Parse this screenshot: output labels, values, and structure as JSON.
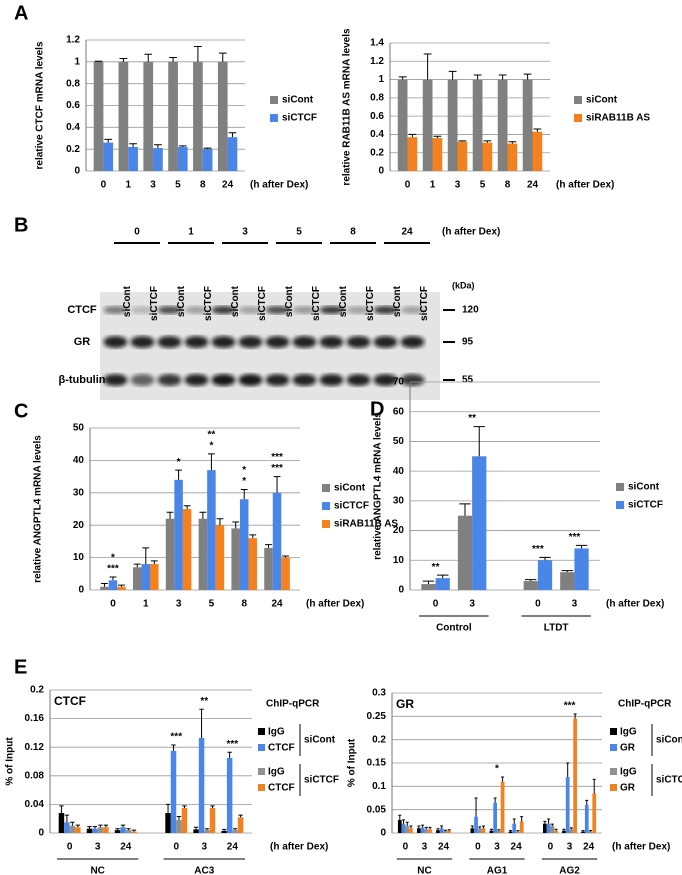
{
  "panel_labels": [
    "A",
    "B",
    "C",
    "D",
    "E"
  ],
  "chart_data": [
    {
      "type": "bar",
      "ylabel": "relative CTCF mRNA levels",
      "xlabel": "(h after Dex)",
      "categories": [
        "0",
        "1",
        "3",
        "5",
        "8",
        "24"
      ],
      "series": [
        {
          "name": "siCont",
          "color": "#808080",
          "values": [
            1,
            1,
            1,
            1,
            1,
            1
          ],
          "errors": [
            0.005,
            0.03,
            0.07,
            0.04,
            0.14,
            0.08
          ]
        },
        {
          "name": "siCTCF",
          "color": "#4a86e8",
          "values": [
            0.26,
            0.22,
            0.21,
            0.22,
            0.2,
            0.31
          ],
          "errors": [
            0.03,
            0.03,
            0.03,
            0.01,
            0.01,
            0.04
          ]
        }
      ],
      "ylim": [
        0,
        1.2
      ],
      "yticks": [
        0,
        0.2,
        0.4,
        0.6,
        0.8,
        1,
        1.2
      ],
      "grid": true
    },
    {
      "type": "bar",
      "ylabel": "relative RAB11B AS mRNA levels",
      "xlabel": "(h after Dex)",
      "categories": [
        "0",
        "1",
        "3",
        "5",
        "8",
        "24"
      ],
      "series": [
        {
          "name": "siCont",
          "color": "#808080",
          "values": [
            1,
            1,
            1,
            1,
            1,
            1
          ],
          "errors": [
            0.03,
            0.28,
            0.09,
            0.05,
            0.05,
            0.06
          ]
        },
        {
          "name": "siRAB11B AS",
          "color": "#f4811f",
          "values": [
            0.37,
            0.36,
            0.32,
            0.31,
            0.3,
            0.43
          ],
          "errors": [
            0.03,
            0.02,
            0.01,
            0.02,
            0.02,
            0.03
          ]
        }
      ],
      "ylim": [
        0,
        1.4
      ],
      "yticks": [
        0,
        0.2,
        0.4,
        0.6,
        0.8,
        1,
        1.2,
        1.4
      ],
      "grid": true
    },
    {
      "type": "bar",
      "ylabel": "relative ANGPTL4 mRNA levels",
      "xlabel": "(h after Dex)",
      "categories": [
        "0",
        "1",
        "3",
        "5",
        "8",
        "24"
      ],
      "series": [
        {
          "name": "siCont",
          "color": "#808080",
          "values": [
            1,
            7,
            22,
            22,
            19,
            13
          ],
          "errors": [
            1,
            1,
            2,
            2,
            2,
            1
          ]
        },
        {
          "name": "siCTCF",
          "color": "#4a86e8",
          "values": [
            3,
            8,
            34,
            37,
            28,
            30
          ],
          "errors": [
            1,
            5,
            3,
            5,
            3,
            5
          ]
        },
        {
          "name": "siRAB11B AS",
          "color": "#f4811f",
          "values": [
            1,
            8,
            25,
            20,
            16,
            10
          ],
          "errors": [
            0.5,
            1,
            1,
            2,
            1,
            0.5
          ]
        }
      ],
      "annotations": [
        "***",
        "*",
        "*",
        "*",
        "**",
        "*",
        "*",
        "***",
        "***"
      ],
      "ylim": [
        0,
        50
      ],
      "yticks": [
        0,
        10,
        20,
        30,
        40,
        50
      ],
      "grid": true
    },
    {
      "type": "bar",
      "ylabel": "relative ANGPTL4 mRNA levels",
      "xlabel": "(h after Dex)",
      "categories": [
        "0",
        "3",
        "0",
        "3"
      ],
      "groups": [
        "Control",
        "LTDT"
      ],
      "series": [
        {
          "name": "siCont",
          "color": "#808080",
          "values": [
            2,
            25,
            3,
            6
          ],
          "errors": [
            1,
            4,
            0.5,
            0.5
          ]
        },
        {
          "name": "siCTCF",
          "color": "#4a86e8",
          "values": [
            4,
            45,
            10,
            14
          ],
          "errors": [
            1,
            10,
            1,
            1
          ]
        }
      ],
      "annotations": [
        "**",
        "**",
        "***",
        "***"
      ],
      "ylim": [
        0,
        70
      ],
      "yticks": [
        0,
        10,
        20,
        30,
        40,
        50,
        60,
        70
      ],
      "grid": true
    },
    {
      "type": "bar",
      "title": "CTCF",
      "ylabel": "% of Input",
      "xlabel": "(h after Dex)",
      "categories": [
        "0",
        "3",
        "24",
        "0",
        "3",
        "24"
      ],
      "groups": [
        "NC",
        "AC3"
      ],
      "legend_title": "ChIP-qPCR",
      "legend_groups": [
        "siCont",
        "siCTCF"
      ],
      "series": [
        {
          "name": "IgG",
          "color": "#000000",
          "values": [
            0.028,
            0.006,
            0.004,
            0.028,
            0.005,
            0.003
          ],
          "errors": [
            0.01,
            0.003,
            0.002,
            0.012,
            0.003,
            0.002
          ]
        },
        {
          "name": "CTCF",
          "color": "#4a86e8",
          "values": [
            0.015,
            0.006,
            0.008,
            0.115,
            0.133,
            0.105
          ],
          "errors": [
            0.01,
            0.003,
            0.003,
            0.008,
            0.04,
            0.008
          ]
        },
        {
          "name": "IgG",
          "color": "#909090",
          "values": [
            0.01,
            0.008,
            0.004,
            0.018,
            0.004,
            0.004
          ],
          "errors": [
            0.005,
            0.003,
            0.002,
            0.005,
            0.002,
            0.002
          ]
        },
        {
          "name": "CTCF",
          "color": "#f4811f",
          "values": [
            0.008,
            0.008,
            0.002,
            0.035,
            0.035,
            0.022
          ],
          "errors": [
            0.003,
            0.003,
            0.002,
            0.003,
            0.003,
            0.003
          ]
        }
      ],
      "annotations": [
        "***",
        "**",
        "***"
      ],
      "ylim": [
        0,
        0.2
      ],
      "yticks": [
        0,
        0.04,
        0.08,
        0.12,
        0.16,
        0.2
      ],
      "grid": true
    },
    {
      "type": "bar",
      "title": "GR",
      "ylabel": "% of Input",
      "xlabel": "(h after Dex)",
      "categories": [
        "0",
        "3",
        "24",
        "0",
        "3",
        "24",
        "0",
        "3",
        "24"
      ],
      "groups": [
        "NC",
        "AG1",
        "AG2"
      ],
      "legend_title": "ChIP-qPCR",
      "legend_groups": [
        "siCont",
        "siCTCF"
      ],
      "series": [
        {
          "name": "IgG",
          "color": "#000000",
          "values": [
            0.028,
            0.01,
            0.006,
            0.01,
            0.005,
            0.003,
            0.02,
            0.005,
            0.003
          ],
          "errors": [
            0.01,
            0.005,
            0.003,
            0.005,
            0.003,
            0.002,
            0.005,
            0.003,
            0.002
          ]
        },
        {
          "name": "GR",
          "color": "#4a86e8",
          "values": [
            0.02,
            0.012,
            0.01,
            0.035,
            0.065,
            0.02,
            0.02,
            0.12,
            0.06
          ],
          "errors": [
            0.008,
            0.005,
            0.005,
            0.04,
            0.01,
            0.01,
            0.01,
            0.03,
            0.01
          ]
        },
        {
          "name": "IgG",
          "color": "#909090",
          "values": [
            0.015,
            0.008,
            0.004,
            0.01,
            0.005,
            0.003,
            0.015,
            0.008,
            0.003
          ],
          "errors": [
            0.008,
            0.004,
            0.002,
            0.003,
            0.002,
            0.002,
            0.004,
            0.003,
            0.002
          ]
        },
        {
          "name": "GR",
          "color": "#f4811f",
          "values": [
            0.01,
            0.008,
            0.005,
            0.01,
            0.11,
            0.025,
            0.005,
            0.245,
            0.085
          ],
          "errors": [
            0.005,
            0.004,
            0.002,
            0.005,
            0.01,
            0.01,
            0.003,
            0.01,
            0.03
          ]
        }
      ],
      "annotations": [
        "*",
        "***"
      ],
      "ylim": [
        0,
        0.3
      ],
      "yticks": [
        0,
        0.05,
        0.1,
        0.15,
        0.2,
        0.25,
        0.3
      ],
      "grid": true
    }
  ],
  "blot": {
    "timepoints": [
      "0",
      "1",
      "3",
      "5",
      "8",
      "24"
    ],
    "time_unit": "(h after Dex)",
    "lanes": [
      "siCont",
      "siCTCF",
      "siCont",
      "siCTCF",
      "siCont",
      "siCTCF",
      "siCont",
      "siCTCF",
      "siCont",
      "siCTCF",
      "siCont",
      "siCTCF"
    ],
    "rows": [
      "CTCF",
      "GR",
      "β-tubulin"
    ],
    "kda_unit": "(kDa)",
    "markers": [
      "120",
      "95",
      "55"
    ]
  }
}
